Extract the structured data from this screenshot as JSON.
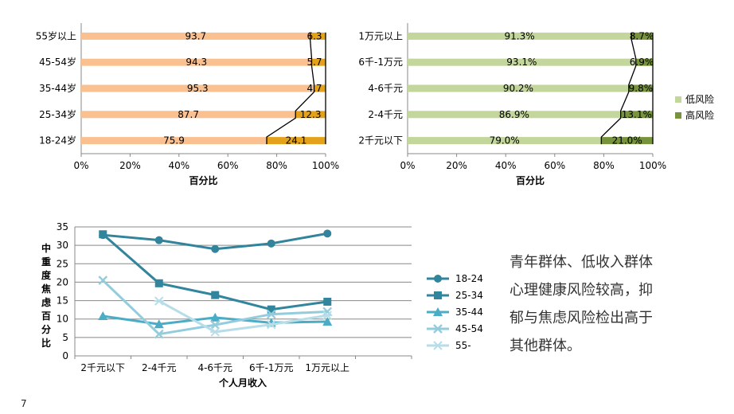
{
  "chart_data": [
    {
      "type": "bar",
      "orientation": "horizontal",
      "stacked": true,
      "percent": true,
      "categories": [
        "55岁以上",
        "45-54岁",
        "35-44岁",
        "25-34岁",
        "18-24岁"
      ],
      "series": [
        {
          "values": [
            93.7,
            94.3,
            95.3,
            87.7,
            75.9
          ],
          "labels": [
            "93.7",
            "94.3",
            "95.3",
            "87.7",
            "75.9"
          ],
          "color": "#FAC090"
        },
        {
          "values": [
            6.3,
            5.7,
            4.7,
            12.3,
            24.1
          ],
          "labels": [
            "6.3",
            "5.7",
            "4.7",
            "12.3",
            "24.1"
          ],
          "color": "#E3A21A"
        }
      ],
      "xlabel": "百分比",
      "xticks": [
        "0%",
        "20%",
        "40%",
        "60%",
        "80%",
        "100%"
      ],
      "xlim": [
        0,
        100
      ],
      "grid": false
    },
    {
      "type": "bar",
      "orientation": "horizontal",
      "stacked": true,
      "percent": true,
      "categories": [
        "1万元以上",
        "6千-1万元",
        "4-6千元",
        "2-4千元",
        "2千元以下"
      ],
      "series": [
        {
          "name": "低风险",
          "values": [
            91.3,
            93.1,
            90.2,
            86.9,
            79.0
          ],
          "labels": [
            "91.3%",
            "93.1%",
            "90.2%",
            "86.9%",
            "79.0%"
          ],
          "color": "#C3D69B"
        },
        {
          "name": "高风险",
          "values": [
            8.7,
            6.9,
            9.8,
            13.1,
            21.0
          ],
          "labels": [
            "8.7%",
            "6.9%",
            "9.8%",
            "13.1%",
            "21.0%"
          ],
          "color": "#77933C"
        }
      ],
      "xlabel": "百分比",
      "xticks": [
        "0%",
        "20%",
        "40%",
        "60%",
        "80%",
        "100%"
      ],
      "xlim": [
        0,
        100
      ],
      "legend": "right",
      "grid": false
    },
    {
      "type": "line",
      "categories": [
        "2千元以下",
        "2-4千元",
        "4-6千元",
        "6千-1万元",
        "1万元以上"
      ],
      "series": [
        {
          "name": "18-24",
          "values": [
            32.8,
            31.4,
            29.0,
            30.5,
            33.2
          ],
          "color": "#31849B",
          "marker": "circle"
        },
        {
          "name": "25-34",
          "values": [
            33.0,
            19.7,
            16.5,
            12.6,
            14.7
          ],
          "color": "#31859C",
          "marker": "square"
        },
        {
          "name": "35-44",
          "values": [
            10.8,
            8.6,
            10.4,
            9.0,
            9.3
          ],
          "color": "#4BACC6",
          "marker": "triangle"
        },
        {
          "name": "45-54",
          "values": [
            20.5,
            5.9,
            8.4,
            11.3,
            12.0
          ],
          "color": "#93CDDD",
          "marker": "x"
        },
        {
          "name": "55-",
          "values": [
            null,
            14.9,
            6.5,
            8.5,
            11.0
          ],
          "color": "#B7DEE8",
          "marker": "star"
        }
      ],
      "xlabel": "个人月收入",
      "ylabel": "中重度焦虑百分比",
      "ylim": [
        0,
        35
      ],
      "yticks": [
        "0",
        "5",
        "10",
        "15",
        "20",
        "25",
        "30",
        "35"
      ],
      "legend": "right",
      "grid": true
    }
  ],
  "summary": {
    "lines": [
      "青年群体、低收入群体",
      "心理健康风险较高，抑",
      "郁与焦虑风险检出高于",
      "其他群体。"
    ]
  },
  "page_number": "7"
}
